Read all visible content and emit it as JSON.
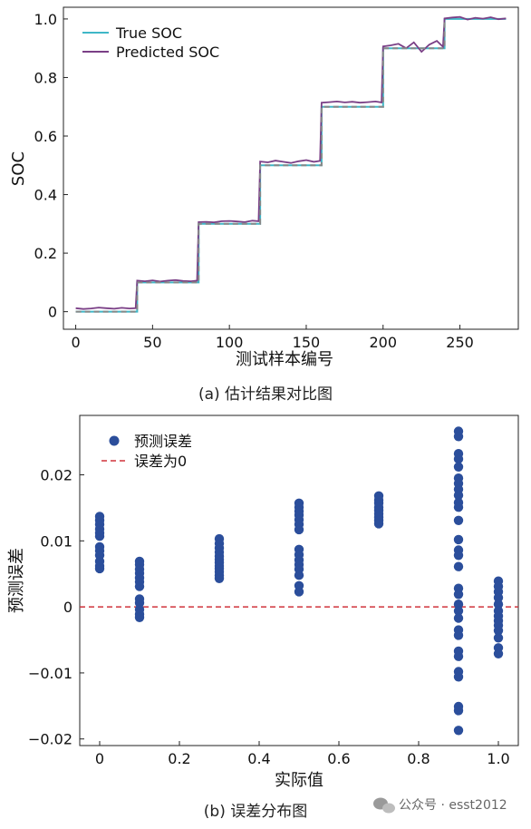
{
  "chart_data": [
    {
      "type": "line",
      "xlabel": "测试样本编号",
      "ylabel": "SOC",
      "xlim": [
        -8,
        288
      ],
      "ylim": [
        -0.06,
        1.04
      ],
      "xticks": [
        0,
        50,
        100,
        150,
        200,
        250
      ],
      "xtick_labels": [
        "0",
        "50",
        "100",
        "150",
        "200",
        "250"
      ],
      "yticks": [
        0,
        0.2,
        0.4,
        0.6,
        0.8,
        1.0
      ],
      "ytick_labels": [
        "0",
        "0.2",
        "0.4",
        "0.6",
        "0.8",
        "1.0"
      ],
      "legend_position": "top-left",
      "caption": "(a) 估计结果对比图",
      "series": [
        {
          "name": "True SOC",
          "color": "#3fb7c7",
          "x": [
            0,
            40,
            40,
            80,
            80,
            120,
            120,
            160,
            160,
            200,
            200,
            240,
            240,
            280
          ],
          "y": [
            0,
            0,
            0.1,
            0.1,
            0.3,
            0.3,
            0.5,
            0.5,
            0.7,
            0.7,
            0.9,
            0.9,
            1.0,
            1.0
          ]
        },
        {
          "name": "Predicted SOC",
          "color": "#7a3f86",
          "x": [
            0,
            5,
            10,
            15,
            20,
            25,
            30,
            35,
            39,
            40,
            45,
            50,
            55,
            60,
            65,
            70,
            75,
            79,
            80,
            85,
            90,
            95,
            100,
            105,
            110,
            115,
            119,
            120,
            125,
            130,
            135,
            140,
            145,
            150,
            155,
            159,
            160,
            165,
            170,
            175,
            180,
            185,
            190,
            195,
            199,
            200,
            205,
            210,
            215,
            220,
            225,
            230,
            235,
            239,
            240,
            245,
            250,
            255,
            260,
            265,
            270,
            275,
            280
          ],
          "y": [
            0.012,
            0.009,
            0.011,
            0.014,
            0.012,
            0.01,
            0.013,
            0.011,
            0.012,
            0.106,
            0.104,
            0.107,
            0.103,
            0.106,
            0.108,
            0.105,
            0.104,
            0.106,
            0.306,
            0.307,
            0.305,
            0.309,
            0.31,
            0.308,
            0.306,
            0.311,
            0.309,
            0.513,
            0.51,
            0.516,
            0.512,
            0.508,
            0.514,
            0.518,
            0.512,
            0.515,
            0.714,
            0.716,
            0.718,
            0.715,
            0.717,
            0.714,
            0.716,
            0.718,
            0.715,
            0.906,
            0.91,
            0.915,
            0.9,
            0.92,
            0.888,
            0.912,
            0.925,
            0.905,
            1.002,
            1.005,
            1.007,
            0.998,
            1.004,
            1.001,
            1.006,
            0.999,
            1.002
          ]
        }
      ],
      "step_line": {
        "style": "dashed",
        "color": "#888888",
        "x": [
          0,
          40,
          40,
          80,
          80,
          120,
          120,
          160,
          160,
          200,
          200,
          240,
          240
        ],
        "y": [
          0,
          0,
          0.1,
          0.1,
          0.3,
          0.3,
          0.5,
          0.5,
          0.7,
          0.7,
          0.9,
          0.9,
          1.0
        ]
      }
    },
    {
      "type": "scatter",
      "xlabel": "实际值",
      "ylabel": "预测误差",
      "xlim": [
        -0.05,
        1.05
      ],
      "ylim": [
        -0.021,
        0.029
      ],
      "xticks": [
        0,
        0.2,
        0.4,
        0.6,
        0.8,
        1.0
      ],
      "xtick_labels": [
        "0",
        "0.2",
        "0.4",
        "0.6",
        "0.8",
        "1.0"
      ],
      "yticks": [
        -0.02,
        -0.01,
        0,
        0.01,
        0.02
      ],
      "ytick_labels": [
        "−0.02",
        "−0.01",
        "0",
        "0.01",
        "0.02"
      ],
      "legend_position": "top-left",
      "caption": "(b) 误差分布图",
      "series": [
        {
          "name": "预测误差",
          "color": "#2b4e9b",
          "points": [
            [
              0,
              0.0137
            ],
            [
              0,
              0.0131
            ],
            [
              0,
              0.0125
            ],
            [
              0,
              0.0118
            ],
            [
              0,
              0.0112
            ],
            [
              0,
              0.0107
            ],
            [
              0,
              0.0091
            ],
            [
              0,
              0.0085
            ],
            [
              0,
              0.0078
            ],
            [
              0,
              0.0069
            ],
            [
              0,
              0.0062
            ],
            [
              0,
              0.0058
            ],
            [
              0.1,
              0.0069
            ],
            [
              0.1,
              0.0064
            ],
            [
              0.1,
              0.0057
            ],
            [
              0.1,
              0.0051
            ],
            [
              0.1,
              0.0044
            ],
            [
              0.1,
              0.0038
            ],
            [
              0.1,
              0.0031
            ],
            [
              0.1,
              0.0012
            ],
            [
              0.1,
              0.0006
            ],
            [
              0.1,
              -0.0004
            ],
            [
              0.1,
              -0.0011
            ],
            [
              0.1,
              -0.0016
            ],
            [
              0.3,
              0.0103
            ],
            [
              0.3,
              0.0096
            ],
            [
              0.3,
              0.0089
            ],
            [
              0.3,
              0.0083
            ],
            [
              0.3,
              0.0077
            ],
            [
              0.3,
              0.0072
            ],
            [
              0.3,
              0.0067
            ],
            [
              0.3,
              0.0062
            ],
            [
              0.3,
              0.0058
            ],
            [
              0.3,
              0.0053
            ],
            [
              0.3,
              0.0048
            ],
            [
              0.3,
              0.0043
            ],
            [
              0.5,
              0.0157
            ],
            [
              0.5,
              0.0151
            ],
            [
              0.5,
              0.0145
            ],
            [
              0.5,
              0.0139
            ],
            [
              0.5,
              0.0132
            ],
            [
              0.5,
              0.0125
            ],
            [
              0.5,
              0.0117
            ],
            [
              0.5,
              0.0087
            ],
            [
              0.5,
              0.0079
            ],
            [
              0.5,
              0.0071
            ],
            [
              0.5,
              0.0064
            ],
            [
              0.5,
              0.0057
            ],
            [
              0.5,
              0.0048
            ],
            [
              0.5,
              0.0032
            ],
            [
              0.5,
              0.0023
            ],
            [
              0.7,
              0.0168
            ],
            [
              0.7,
              0.0162
            ],
            [
              0.7,
              0.0157
            ],
            [
              0.7,
              0.0151
            ],
            [
              0.7,
              0.0146
            ],
            [
              0.7,
              0.0141
            ],
            [
              0.7,
              0.0136
            ],
            [
              0.7,
              0.0131
            ],
            [
              0.7,
              0.0126
            ],
            [
              0.9,
              0.0266
            ],
            [
              0.9,
              0.0258
            ],
            [
              0.9,
              0.0232
            ],
            [
              0.9,
              0.0224
            ],
            [
              0.9,
              0.0212
            ],
            [
              0.9,
              0.0195
            ],
            [
              0.9,
              0.0187
            ],
            [
              0.9,
              0.0178
            ],
            [
              0.9,
              0.0169
            ],
            [
              0.9,
              0.0158
            ],
            [
              0.9,
              0.0151
            ],
            [
              0.9,
              0.0131
            ],
            [
              0.9,
              0.0102
            ],
            [
              0.9,
              0.0086
            ],
            [
              0.9,
              0.0078
            ],
            [
              0.9,
              0.0061
            ],
            [
              0.9,
              0.0028
            ],
            [
              0.9,
              0.0019
            ],
            [
              0.9,
              0.0004
            ],
            [
              0.9,
              -0.0006
            ],
            [
              0.9,
              -0.0017
            ],
            [
              0.9,
              -0.0035
            ],
            [
              0.9,
              -0.0043
            ],
            [
              0.9,
              -0.0067
            ],
            [
              0.9,
              -0.0075
            ],
            [
              0.9,
              -0.0098
            ],
            [
              0.9,
              -0.0106
            ],
            [
              0.9,
              -0.0151
            ],
            [
              0.9,
              -0.0157
            ],
            [
              0.9,
              -0.0187
            ],
            [
              1.0,
              0.0039
            ],
            [
              1.0,
              0.0031
            ],
            [
              1.0,
              0.0023
            ],
            [
              1.0,
              0.0014
            ],
            [
              1.0,
              0.0004
            ],
            [
              1.0,
              -0.0006
            ],
            [
              1.0,
              -0.0014
            ],
            [
              1.0,
              -0.0021
            ],
            [
              1.0,
              -0.0028
            ],
            [
              1.0,
              -0.0036
            ],
            [
              1.0,
              -0.0047
            ],
            [
              1.0,
              -0.0062
            ],
            [
              1.0,
              -0.0071
            ]
          ]
        },
        {
          "name": "误差为0",
          "color": "#d0343c",
          "style": "dashed",
          "y": 0
        }
      ]
    }
  ],
  "watermark": "公众号 · esst2012"
}
